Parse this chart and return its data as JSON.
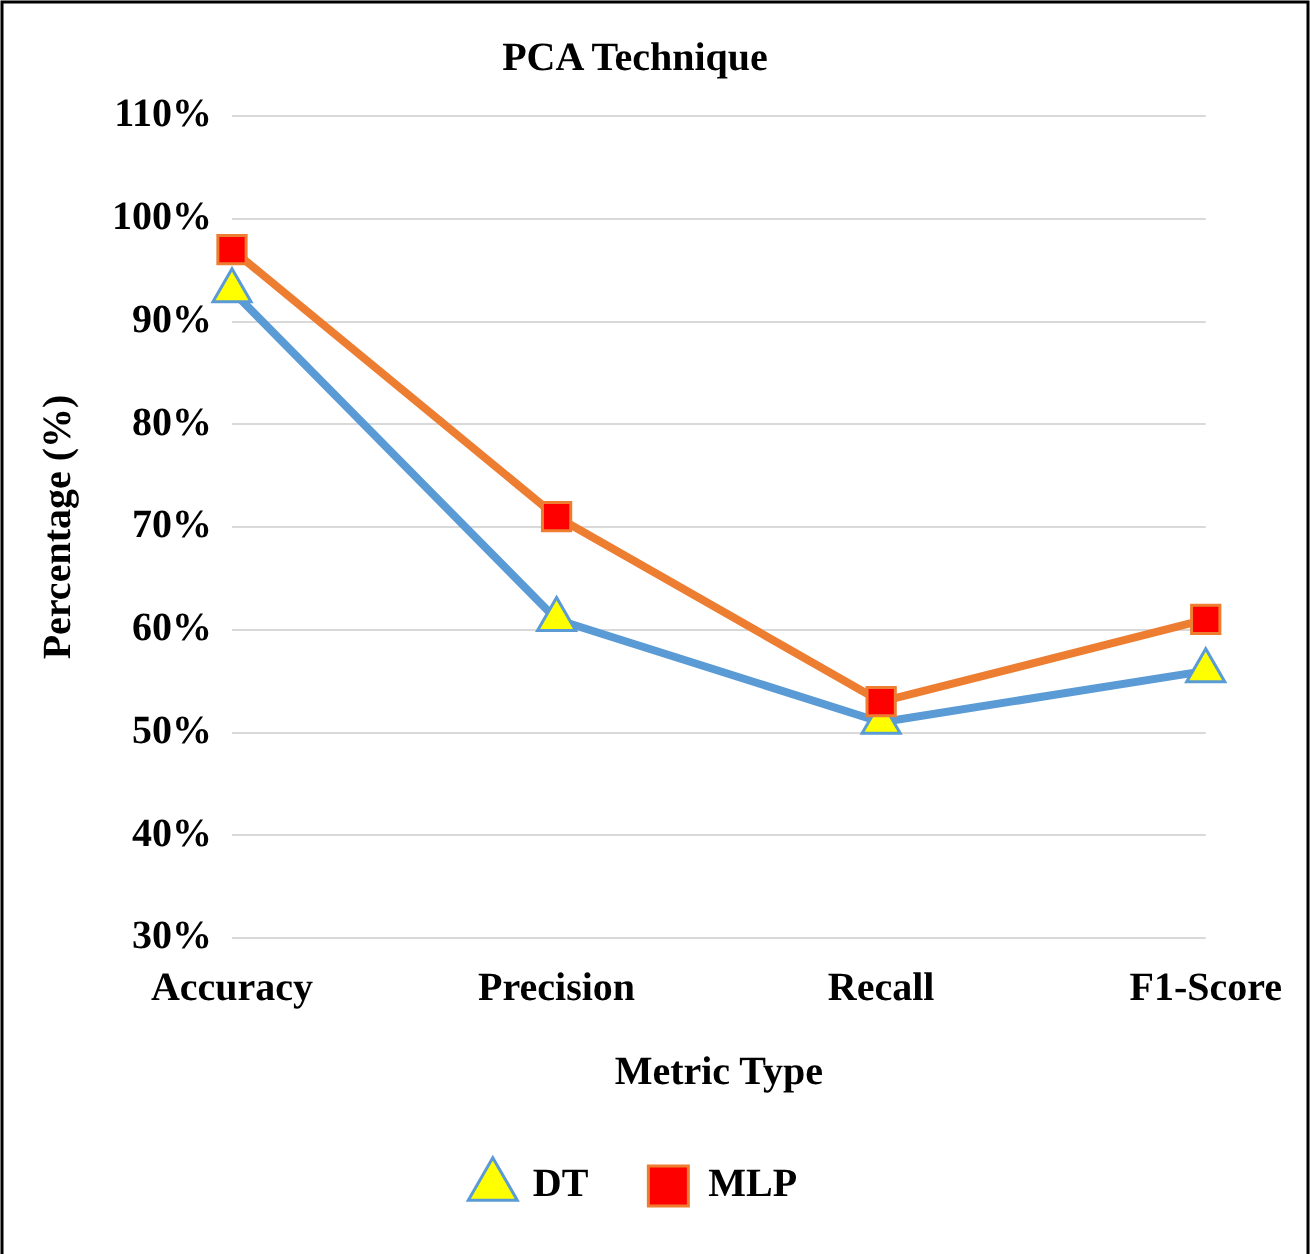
{
  "chart_data": {
    "type": "line",
    "title": "PCA Technique",
    "xlabel": "Metric Type",
    "ylabel": "Percentage (%)",
    "categories": [
      "Accuracy",
      "Precision",
      "Recall",
      "F1-Score"
    ],
    "series": [
      {
        "name": "DT",
        "color": "#5b9bd5",
        "marker": "triangle",
        "colors": [
          "#ffff00",
          "#ffff00",
          "#ffff00",
          "#ffff00"
        ],
        "values": [
          93,
          61,
          51,
          56
        ]
      },
      {
        "name": "MLP",
        "color": "#ed7d31",
        "marker": "square",
        "colors": [
          "#ff0000",
          "#ff0000",
          "#ff0000",
          "#ff0000"
        ],
        "values": [
          97,
          71,
          53,
          61
        ]
      }
    ],
    "ylim": [
      30,
      110
    ],
    "yticks": [
      {
        "value": 30,
        "label": "30%"
      },
      {
        "value": 40,
        "label": "40%"
      },
      {
        "value": 50,
        "label": "50%"
      },
      {
        "value": 60,
        "label": "60%"
      },
      {
        "value": 70,
        "label": "70%"
      },
      {
        "value": 80,
        "label": "80%"
      },
      {
        "value": 90,
        "label": "90%"
      },
      {
        "value": 100,
        "label": "100%"
      },
      {
        "value": 110,
        "label": "110%"
      }
    ],
    "grid": "y",
    "legend": "bottom",
    "line_style": "solid"
  }
}
